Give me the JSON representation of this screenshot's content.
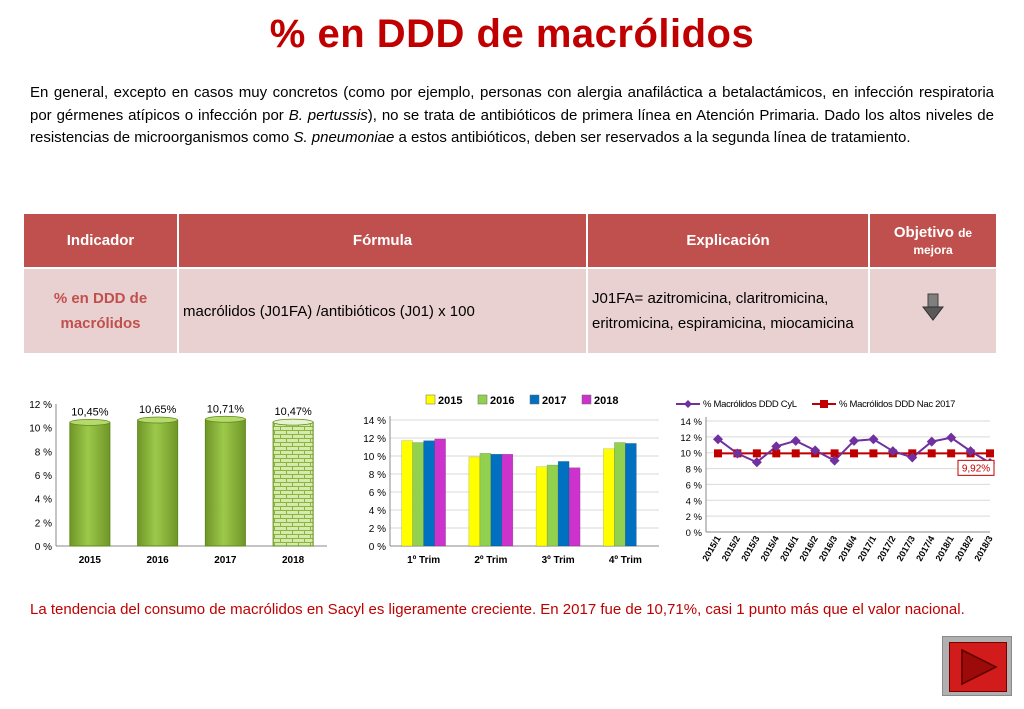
{
  "title": "% en DDD de macrólidos",
  "intro": {
    "p1": "En general, excepto en casos muy concretos (como por ejemplo, personas con alergia anafiláctica a betalactámicos, en infección respiratoria por gérmenes atípicos o infección por ",
    "em1": "B. pertussis",
    "p2": "), no se trata de antibióticos de primera línea en Atención Primaria. Dado los altos niveles de resistencias de microorganismos como ",
    "em2": "S. pneumoniae",
    "p3": " a estos antibióticos, deben ser reservados a la segunda línea de tratamiento."
  },
  "table": {
    "headers": {
      "indicador": "Indicador",
      "formula": "Fórmula",
      "explicacion": "Explicación",
      "objetivo_main": "Objetivo",
      "objetivo_small1": "de",
      "objetivo_small2": "mejora"
    },
    "row": {
      "indicador": "% en DDD de macrólidos",
      "formula": "macrólidos (J01FA) /antibióticos (J01) x 100",
      "explicacion": "J01FA= azitromicina, claritromicina, eritromicina, espiramicina, miocamicina",
      "objetivo_icon": "down-arrow-icon"
    }
  },
  "colors": {
    "header_bg": "#c0504d",
    "row_bg": "#ead1d1",
    "title": "#c00000",
    "bar_green": "#8db33a",
    "y2015": "#ffff00",
    "y2016": "#92d050",
    "y2017": "#0070c0",
    "y2018": "#cc33cc",
    "line_cyl": "#7030a0",
    "line_nac": "#c00000"
  },
  "chart_data": [
    {
      "type": "bar",
      "categories": [
        "2015",
        "2016",
        "2017",
        "2018"
      ],
      "values": [
        10.45,
        10.65,
        10.71,
        10.47
      ],
      "data_labels": [
        "10,45%",
        "10,65%",
        "10,71%",
        "10,47%"
      ],
      "ylim": [
        0,
        12
      ],
      "yticks": [
        "0 %",
        "2 %",
        "4 %",
        "6 %",
        "8 %",
        "10 %",
        "12 %"
      ],
      "grid": false,
      "note": "2018 bar drawn with brick pattern"
    },
    {
      "type": "bar",
      "categories": [
        "1º Trim",
        "2º Trim",
        "3º Trim",
        "4º Trim"
      ],
      "series": [
        {
          "name": "2015",
          "values": [
            11.7,
            9.9,
            8.8,
            10.8
          ]
        },
        {
          "name": "2016",
          "values": [
            11.5,
            10.3,
            9.0,
            11.5
          ]
        },
        {
          "name": "2017",
          "values": [
            11.7,
            10.2,
            9.4,
            11.4
          ]
        },
        {
          "name": "2018",
          "values": [
            11.9,
            10.2,
            8.7,
            null
          ]
        }
      ],
      "ylim": [
        0,
        14
      ],
      "yticks": [
        "0 %",
        "2 %",
        "4 %",
        "6 %",
        "8 %",
        "10 %",
        "12 %",
        "14 %"
      ],
      "legend": "top",
      "grid": true
    },
    {
      "type": "line",
      "x": [
        "2015/1",
        "2015/2",
        "2015/3",
        "2015/4",
        "2016/1",
        "2016/2",
        "2016/3",
        "2016/4",
        "2017/1",
        "2017/2",
        "2017/3",
        "2017/4",
        "2018/1",
        "2018/2",
        "2018/3"
      ],
      "series": [
        {
          "name": "% Macrólidos DDD CyL",
          "values": [
            11.7,
            9.9,
            8.8,
            10.8,
            11.5,
            10.3,
            9.0,
            11.5,
            11.7,
            10.2,
            9.4,
            11.4,
            11.9,
            10.2,
            8.7
          ]
        },
        {
          "name": "% Macrólidos DDD  Nac 2017",
          "values": [
            9.92,
            9.92,
            9.92,
            9.92,
            9.92,
            9.92,
            9.92,
            9.92,
            9.92,
            9.92,
            9.92,
            9.92,
            9.92,
            9.92,
            9.92
          ]
        }
      ],
      "annotation": "9,92%",
      "ylim": [
        0,
        14
      ],
      "yticks": [
        "0 %",
        "2 %",
        "4 %",
        "6 %",
        "8 %",
        "10 %",
        "12 %",
        "14 %"
      ],
      "legend": "top",
      "grid": true
    }
  ],
  "conclusion": "La tendencia del consumo de macrólidos en Sacyl es ligeramente creciente. En 2017 fue de 10,71%, casi 1 punto más que el valor nacional.",
  "nav": {
    "next_icon": "play-right-icon"
  }
}
